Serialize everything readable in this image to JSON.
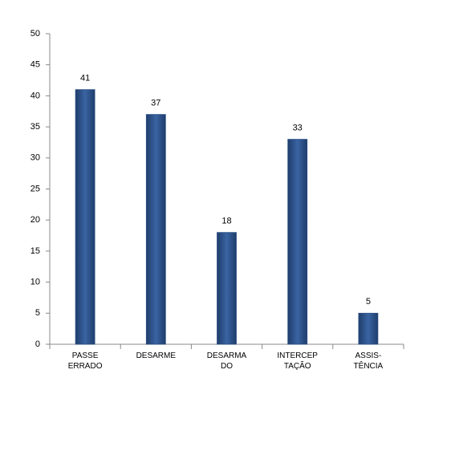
{
  "chart_data": {
    "type": "bar",
    "categories": [
      "PASSE\nERRADO",
      "DESARME",
      "DESARMA\nDO",
      "INTERCEP\nTAÇÃO",
      "ASSIS-\nTÊNCIA"
    ],
    "values": [
      41,
      37,
      18,
      33,
      5
    ],
    "color": "#2b4f87",
    "ylim": [
      0,
      50
    ],
    "yticks": [
      0,
      5,
      10,
      15,
      20,
      25,
      30,
      35,
      40,
      45,
      50
    ],
    "grid": false
  }
}
